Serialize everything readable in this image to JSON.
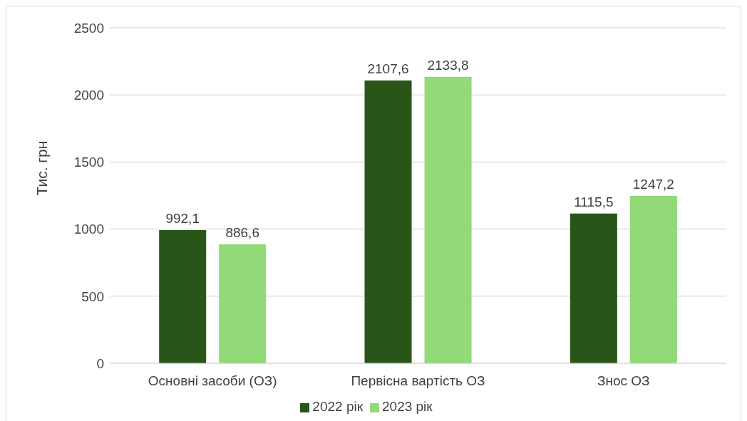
{
  "chart_data": {
    "type": "bar",
    "ylabel": "Тис. грн",
    "categories": [
      "Основні засоби (ОЗ)",
      "Первісна вартість ОЗ",
      "Знос ОЗ"
    ],
    "series": [
      {
        "name": "2022 рік",
        "color": "#2a5518",
        "values": [
          992.1,
          2107.6,
          1115.5
        ],
        "value_labels": [
          "992,1",
          "2107,6",
          "1115,5"
        ]
      },
      {
        "name": "2023 рік",
        "color": "#92d978",
        "values": [
          886.6,
          2133.8,
          1247.2
        ],
        "value_labels": [
          "886,6",
          "2133,8",
          "1247,2"
        ]
      }
    ],
    "ylim": [
      0,
      2500
    ],
    "yticks": [
      0,
      500,
      1000,
      1500,
      2000,
      2500
    ],
    "grid": "y",
    "legend": "bottom"
  }
}
